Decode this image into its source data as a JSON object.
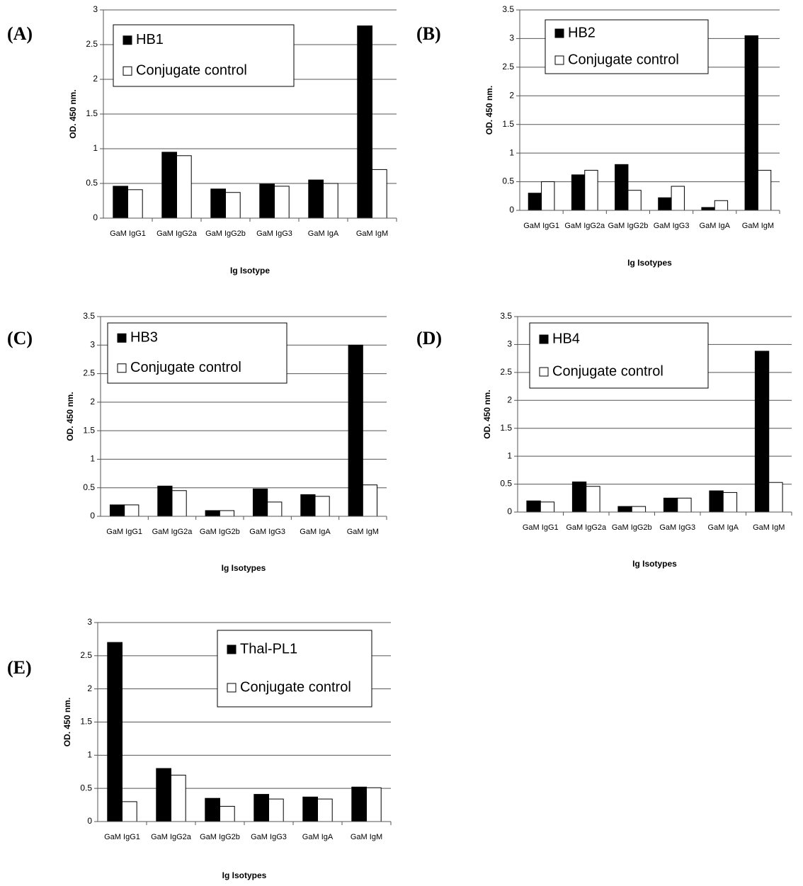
{
  "chart_data": [
    {
      "type": "bar",
      "panel_label": "(A)",
      "x_label": "Ig Isotype",
      "y_label": "OD. 450 nm.",
      "categories": [
        "GaM IgG1",
        "GaM IgG2a",
        "GaM IgG2b",
        "GaM IgG3",
        "GaM IgA",
        "GaM IgM"
      ],
      "series": [
        {
          "name": "HB1",
          "color": "#000000",
          "values": [
            0.46,
            0.95,
            0.42,
            0.49,
            0.55,
            2.77
          ]
        },
        {
          "name": "Conjugate control",
          "color": "#ffffff",
          "values": [
            0.41,
            0.9,
            0.37,
            0.46,
            0.5,
            0.7
          ]
        }
      ],
      "ylim": [
        0,
        3
      ],
      "yticks": [
        0,
        0.5,
        1,
        1.5,
        2,
        2.5,
        3
      ],
      "grid": true
    },
    {
      "type": "bar",
      "panel_label": "(B)",
      "x_label": "Ig Isotypes",
      "y_label": "OD. 450 nm.",
      "categories": [
        "GaM IgG1",
        "GaM IgG2a",
        "GaM IgG2b",
        "GaM IgG3",
        "GaM IgA",
        "GaM IgM"
      ],
      "series": [
        {
          "name": "HB2",
          "color": "#000000",
          "values": [
            0.3,
            0.62,
            0.8,
            0.22,
            0.05,
            3.05
          ]
        },
        {
          "name": "Conjugate control",
          "color": "#ffffff",
          "values": [
            0.5,
            0.7,
            0.35,
            0.42,
            0.17,
            0.7
          ]
        }
      ],
      "ylim": [
        0,
        3.5
      ],
      "yticks": [
        0,
        0.5,
        1,
        1.5,
        2,
        2.5,
        3,
        3.5
      ],
      "grid": true
    },
    {
      "type": "bar",
      "panel_label": "(C)",
      "x_label": "Ig Isotypes",
      "y_label": "OD. 450 nm.",
      "categories": [
        "GaM IgG1",
        "GaM IgG2a",
        "GaM IgG2b",
        "GaM IgG3",
        "GaM IgA",
        "GaM IgM"
      ],
      "series": [
        {
          "name": "HB3",
          "color": "#000000",
          "values": [
            0.2,
            0.53,
            0.1,
            0.48,
            0.38,
            3.0
          ]
        },
        {
          "name": "Conjugate control",
          "color": "#ffffff",
          "values": [
            0.2,
            0.45,
            0.1,
            0.25,
            0.35,
            0.55
          ]
        }
      ],
      "ylim": [
        0,
        3.5
      ],
      "yticks": [
        0,
        0.5,
        1,
        1.5,
        2,
        2.5,
        3,
        3.5
      ],
      "grid": true
    },
    {
      "type": "bar",
      "panel_label": "(D)",
      "x_label": "Ig Isotypes",
      "y_label": "OD. 450 nm.",
      "categories": [
        "GaM IgG1",
        "GaM IgG2a",
        "GaM IgG2b",
        "GaM IgG3",
        "GaM IgA",
        "GaM IgM"
      ],
      "series": [
        {
          "name": "HB4",
          "color": "#000000",
          "values": [
            0.2,
            0.54,
            0.1,
            0.25,
            0.38,
            2.88
          ]
        },
        {
          "name": "Conjugate control",
          "color": "#ffffff",
          "values": [
            0.18,
            0.46,
            0.1,
            0.25,
            0.35,
            0.53
          ]
        }
      ],
      "ylim": [
        0,
        3.5
      ],
      "yticks": [
        0,
        0.5,
        1,
        1.5,
        2,
        2.5,
        3,
        3.5
      ],
      "grid": true
    },
    {
      "type": "bar",
      "panel_label": "(E)",
      "x_label": "Ig Isotypes",
      "y_label": "OD. 450 nm.",
      "categories": [
        "GaM IgG1",
        "GaM IgG2a",
        "GaM IgG2b",
        "GaM IgG3",
        "GaM IgA",
        "GaM IgM"
      ],
      "series": [
        {
          "name": "Thal-PL1",
          "color": "#000000",
          "values": [
            2.7,
            0.8,
            0.35,
            0.41,
            0.37,
            0.52
          ]
        },
        {
          "name": "Conjugate control",
          "color": "#ffffff",
          "values": [
            0.3,
            0.7,
            0.23,
            0.34,
            0.34,
            0.51
          ]
        }
      ],
      "ylim": [
        0,
        3
      ],
      "yticks": [
        0,
        0.5,
        1,
        1.5,
        2,
        2.5,
        3
      ],
      "grid": true
    }
  ]
}
